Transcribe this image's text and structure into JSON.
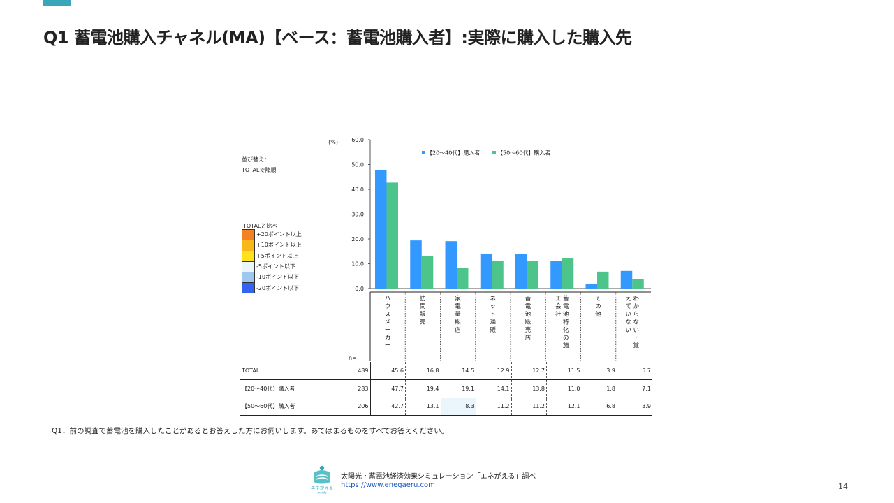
{
  "header": {
    "title": "Q1 蓄電池購入チャネル(MA)【ベース：蓄電池購入者】:実際に購入した購入先",
    "accent_color": "#3aa6b9"
  },
  "sort_note": [
    "並び替え：",
    "TOTALで降順"
  ],
  "color_legend": {
    "title": "TOTALと比べ",
    "items": [
      {
        "label": "+20ポイント以上",
        "color": "#f58220"
      },
      {
        "label": "+10ポイント以上",
        "color": "#f8b81c"
      },
      {
        "label": "+5ポイント以上",
        "color": "#ffe21a"
      },
      {
        "label": "-5ポイント以下",
        "color": "#eaf6fc"
      },
      {
        "label": "-10ポイント以下",
        "color": "#9fc8f0"
      },
      {
        "label": "-20ポイント以下",
        "color": "#3463f0"
      }
    ]
  },
  "chart_data": {
    "type": "bar",
    "unit_label": "(%)",
    "n_label": "n=",
    "ylim": [
      0,
      60
    ],
    "yticks": [
      "0.0",
      "10.0",
      "20.0",
      "30.0",
      "40.0",
      "50.0",
      "60.0"
    ],
    "legend_position": "top",
    "categories": [
      "ハウスメーカー",
      "訪問販売",
      "家電量販店",
      "ネット通販",
      "蓄電池販売店",
      "蓄電池特化の施工会社",
      "その他",
      "わからない・覚えていない"
    ],
    "category_label_columns": [
      [
        "ハウスメーカー"
      ],
      [
        "訪問販売"
      ],
      [
        "家電量販店"
      ],
      [
        "ネット通販"
      ],
      [
        "蓄電池販売店"
      ],
      [
        "蓄電池特化の施",
        "工会社"
      ],
      [
        "その他"
      ],
      [
        "わからない・覚",
        "えていない"
      ]
    ],
    "series": [
      {
        "name": "【20～40代】購入者",
        "color": "#3399ff",
        "values": [
          47.7,
          19.4,
          19.1,
          14.1,
          13.8,
          11.0,
          1.8,
          7.1
        ]
      },
      {
        "name": "【50～60代】購入者",
        "color": "#4cc48a",
        "values": [
          42.7,
          13.1,
          8.3,
          11.2,
          11.2,
          12.1,
          6.8,
          3.9
        ]
      }
    ]
  },
  "table": {
    "rows": [
      {
        "label": "TOTAL",
        "n": "489",
        "values": [
          "45.6",
          "16.8",
          "14.5",
          "12.9",
          "12.7",
          "11.5",
          "3.9",
          "5.7"
        ],
        "highlight": [
          "",
          "",
          "",
          "",
          "",
          "",
          "",
          ""
        ]
      },
      {
        "label": "【20～40代】購入者",
        "n": "283",
        "values": [
          "47.7",
          "19.4",
          "19.1",
          "14.1",
          "13.8",
          "11.0",
          "1.8",
          "7.1"
        ],
        "highlight": [
          "",
          "",
          "",
          "",
          "",
          "",
          "",
          ""
        ]
      },
      {
        "label": "【50～60代】購入者",
        "n": "206",
        "values": [
          "42.7",
          "13.1",
          "8.3",
          "11.2",
          "11.2",
          "12.1",
          "6.8",
          "3.9"
        ],
        "highlight": [
          "",
          "",
          "#eaf6fc",
          "",
          "",
          "",
          "",
          ""
        ]
      }
    ]
  },
  "question_note": "Q1．前の調査で蓄電池を購入したことがあるとお答えした方にお伺いします。あてはまるものをすべてお答えください。",
  "footer": {
    "logo_text": "エネがえる",
    "logo_subtext": "inside",
    "source": "太陽光・蓄電池経済効果シミュレーション「エネがえる」調べ",
    "url": "https://www.enegaeru.com",
    "page_number": "14"
  }
}
